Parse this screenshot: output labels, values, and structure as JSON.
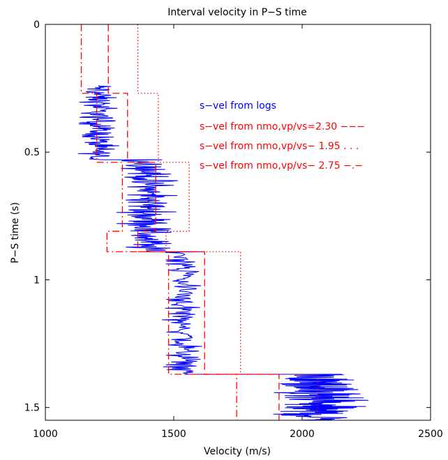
{
  "chart_data": {
    "type": "line",
    "title": "Interval velocity in P−S time",
    "xlabel": "Velocity (m/s)",
    "ylabel": "P−S time (s)",
    "xlim": [
      1000,
      2500
    ],
    "ylim": [
      0,
      1.55
    ],
    "y_reversed": true,
    "xticks": [
      1000,
      1500,
      2000,
      2500
    ],
    "yticks": [
      0,
      0.5,
      1,
      1.5
    ],
    "xtick_labels": [
      "1000",
      "1500",
      "2000",
      "2500"
    ],
    "ytick_labels": [
      "0",
      "0.5",
      "1",
      "1.5"
    ],
    "grid": false,
    "legend_position": "upper-right",
    "legend": [
      {
        "label": "s−vel from logs",
        "color": "#0000ff",
        "style": "solid"
      },
      {
        "label": "s−vel from nmo,vp/vs=2.30  −−−",
        "color": "#ff0000",
        "style": "dashed"
      },
      {
        "label": "s−vel from nmo,vp/vs− 1.95  . . .",
        "color": "#ff0000",
        "style": "dotted"
      },
      {
        "label": "s−vel from nmo,vp/vs− 2.75  −.−",
        "color": "#ff0000",
        "style": "dashdot"
      }
    ],
    "series": [
      {
        "name": "s−vel from logs",
        "color": "#0000ff",
        "style": "solid",
        "kind": "log",
        "segments": [
          {
            "t0": 0.24,
            "t1": 0.53,
            "center": 1205,
            "amp": 75
          },
          {
            "t0": 0.53,
            "t1": 0.89,
            "center": 1400,
            "amp": 110
          },
          {
            "t0": 0.89,
            "t1": 1.37,
            "center": 1540,
            "amp": 75
          },
          {
            "t0": 1.37,
            "t1": 1.55,
            "center": 2050,
            "amp": 190
          }
        ]
      },
      {
        "name": "s−vel from nmo,vp/vs=2.30",
        "color": "#ff0000",
        "style": "dashed",
        "steps": [
          {
            "t0": 0.0,
            "t1": 0.27,
            "v": 1245
          },
          {
            "t0": 0.27,
            "t1": 0.54,
            "v": 1320
          },
          {
            "t0": 0.54,
            "t1": 0.81,
            "v": 1430
          },
          {
            "t0": 0.81,
            "t1": 0.89,
            "v": 1360
          },
          {
            "t0": 0.89,
            "t1": 1.37,
            "v": 1620
          },
          {
            "t0": 1.37,
            "t1": 1.55,
            "v": 1910
          }
        ]
      },
      {
        "name": "s−vel from nmo,vp/vs− 1.95",
        "color": "#ff0000",
        "style": "dotted",
        "steps": [
          {
            "t0": 0.0,
            "t1": 0.27,
            "v": 1360
          },
          {
            "t0": 0.27,
            "t1": 0.54,
            "v": 1440
          },
          {
            "t0": 0.54,
            "t1": 0.81,
            "v": 1560
          },
          {
            "t0": 0.81,
            "t1": 0.89,
            "v": 1470
          },
          {
            "t0": 0.89,
            "t1": 1.37,
            "v": 1760
          },
          {
            "t0": 1.37,
            "t1": 1.55,
            "v": 2060
          }
        ]
      },
      {
        "name": "s−vel from nmo,vp/vs− 2.75",
        "color": "#ff0000",
        "style": "dashdot",
        "steps": [
          {
            "t0": 0.0,
            "t1": 0.27,
            "v": 1140
          },
          {
            "t0": 0.27,
            "t1": 0.54,
            "v": 1200
          },
          {
            "t0": 0.54,
            "t1": 0.81,
            "v": 1300
          },
          {
            "t0": 0.81,
            "t1": 0.89,
            "v": 1240
          },
          {
            "t0": 0.89,
            "t1": 1.37,
            "v": 1480
          },
          {
            "t0": 1.37,
            "t1": 1.55,
            "v": 1745
          }
        ]
      }
    ]
  }
}
